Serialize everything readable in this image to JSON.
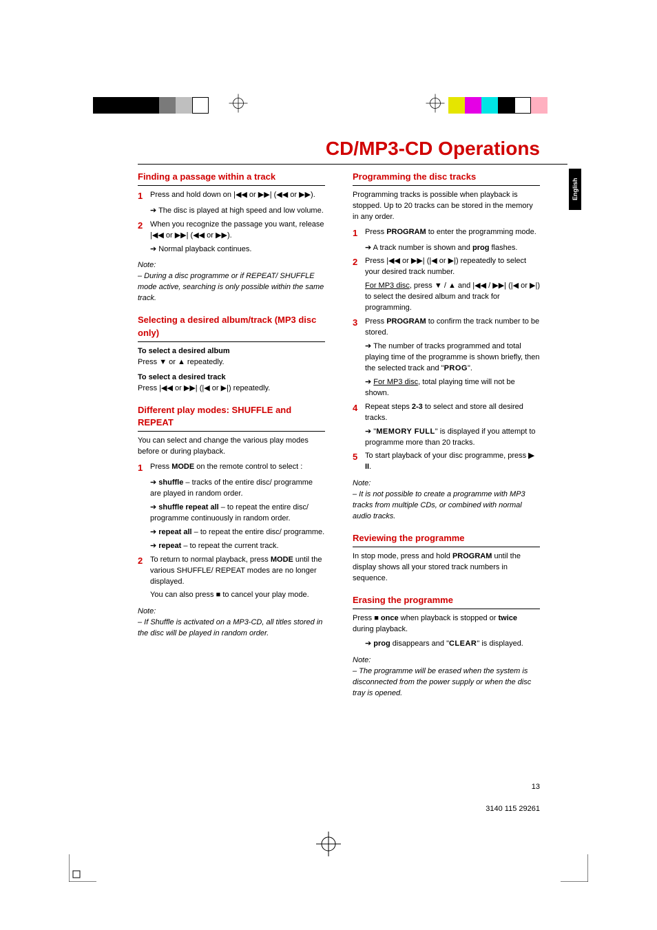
{
  "reg": {
    "left_colors": [
      "#000000",
      "#000000",
      "#000000",
      "#000000",
      "#7a7a7a",
      "#bfbfbf",
      "#ffffff",
      "#ffffff"
    ],
    "left_border": [
      false,
      false,
      false,
      false,
      false,
      false,
      true,
      false
    ],
    "right_colors": [
      "#e5e500",
      "#e500e5",
      "#00e5e5",
      "#000000",
      "#ffffff",
      "#ffb0c0",
      "#ffffff"
    ],
    "right_border": [
      false,
      false,
      false,
      false,
      true,
      false,
      false
    ]
  },
  "title": "CD/MP3-CD Operations",
  "lang": "English",
  "left": {
    "s1_title": "Finding a passage within a track",
    "s1_step1_a": "Press and hold down on ",
    "s1_step1_b": " or ",
    "s1_step1_c": " (",
    "s1_step1_d": " or ",
    "s1_step1_e": ").",
    "s1_res1": "The disc is played at high speed and low volume.",
    "s1_step2_a": "When you recognize the passage you want, release ",
    "s1_step2_b": " or ",
    "s1_step2_c": " (",
    "s1_step2_d": " or ",
    "s1_step2_e": ").",
    "s1_res2": "Normal playback continues.",
    "s1_note_hd": "Note:",
    "s1_note": "– During a disc programme or if REPEAT/ SHUFFLE mode active, searching is only possible within the same track.",
    "s2_title": "Selecting a desired album/track (MP3 disc only)",
    "s2_sub1": "To select a desired album",
    "s2_body1_a": "Press ",
    "s2_body1_b": " or ",
    "s2_body1_c": " repeatedly.",
    "s2_sub2": "To select a desired track",
    "s2_body2_a": "Press ",
    "s2_body2_b": " or ",
    "s2_body2_c": " (",
    "s2_body2_d": " or ",
    "s2_body2_e": ") repeatedly.",
    "s3_title": "Different play modes: SHUFFLE and REPEAT",
    "s3_intro": "You can select and change the various play modes before or during playback.",
    "s3_step1_a": "Press ",
    "s3_step1_b": "MODE",
    "s3_step1_c": " on the remote control to select :",
    "s3_opt1_a": "shuffle",
    "s3_opt1_b": " – tracks of the entire disc/ programme are played in random order.",
    "s3_opt2_a": "shuffle repeat all",
    "s3_opt2_b": " – to repeat the entire disc/ programme continuously in random order.",
    "s3_opt3_a": "repeat all",
    "s3_opt3_b": " – to repeat the entire disc/ programme.",
    "s3_opt4_a": "repeat",
    "s3_opt4_b": " – to repeat the current track.",
    "s3_step2_a": "To return to normal playback, press ",
    "s3_step2_b": "MODE",
    "s3_step2_c": " until the various SHUFFLE/ REPEAT modes are no longer displayed.",
    "s3_also_a": "You can also press ",
    "s3_also_b": " to cancel your play mode.",
    "s3_note_hd": "Note:",
    "s3_note": "– If Shuffle is activated on a MP3-CD, all titles stored in the disc will be played in random order."
  },
  "right": {
    "s4_title": "Programming the disc tracks",
    "s4_intro": "Programming tracks is possible when playback is stopped. Up to 20 tracks can be stored in the memory in any order.",
    "s4_step1_a": "Press ",
    "s4_step1_b": "PROGRAM",
    "s4_step1_c": " to enter the programming mode.",
    "s4_res1_a": "A track number is shown and ",
    "s4_res1_b": "prog",
    "s4_res1_c": " flashes.",
    "s4_step2_a": "Press ",
    "s4_step2_b": " or ",
    "s4_step2_c": " (",
    "s4_step2_d": " or ",
    "s4_step2_e": ") repeatedly to select your desired track number.",
    "s4_mp3_a": "For MP3 disc",
    "s4_mp3_b": ", press ",
    "s4_mp3_c": " / ",
    "s4_mp3_d": " and ",
    "s4_mp3_e": " / ",
    "s4_mp3_f": " (",
    "s4_mp3_g": " or ",
    "s4_mp3_h": ") to select the desired album and track for programming.",
    "s4_step3_a": "Press ",
    "s4_step3_b": "PROGRAM",
    "s4_step3_c": " to confirm the track number to be stored.",
    "s4_res3_a": "The number of tracks programmed and total playing time of the programme is shown briefly, then the selected track and \"",
    "s4_res3_b": "PROG",
    "s4_res3_c": "\".",
    "s4_res3b_a": "For MP3 disc",
    "s4_res3b_b": ", total playing time will not be shown.",
    "s4_step4_a": "Repeat steps ",
    "s4_step4_b": "2-3",
    "s4_step4_c": " to select and store all desired tracks.",
    "s4_res4_a": "\"",
    "s4_res4_b": "MEMORY FULL",
    "s4_res4_c": "\" is displayed if you attempt to programme more than 20 tracks.",
    "s4_step5_a": "To start playback of your disc programme, press ",
    "s4_step5_b": ".",
    "s4_note_hd": "Note:",
    "s4_note": "– It is not possible to create a programme with MP3 tracks from multiple CDs, or combined with normal audio tracks.",
    "s5_title": "Reviewing the programme",
    "s5_body_a": "In stop mode, press and hold ",
    "s5_body_b": "PROGRAM",
    "s5_body_c": " until the display shows all your stored track numbers in sequence.",
    "s6_title": "Erasing the programme",
    "s6_body_a": "Press ",
    "s6_body_b": " once",
    "s6_body_c": " when playback is stopped or ",
    "s6_body_d": "twice",
    "s6_body_e": " during playback.",
    "s6_res_a": "prog",
    "s6_res_b": " disappears and \"",
    "s6_res_c": "CLEAR",
    "s6_res_d": "\" is displayed.",
    "s6_note_hd": "Note:",
    "s6_note": "– The programme will be erased when the system is disconnected from the power supply or when the disc tray is opened."
  },
  "footer": {
    "page": "13",
    "code": "3140 115 29261"
  },
  "sym": {
    "skip_back": "|◀◀",
    "skip_fwd": "▶▶|",
    "prev": "|◀",
    "next": "▶|",
    "rew": "◀◀",
    "ff": "▶▶",
    "down": "▼",
    "up": "▲",
    "stop": "■",
    "playpause": "▶ II"
  }
}
